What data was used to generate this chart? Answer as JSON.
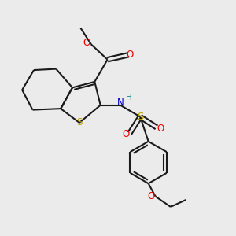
{
  "bg_color": "#ebebeb",
  "bond_color": "#1a1a1a",
  "S_color": "#b8a000",
  "O_color": "#ee0000",
  "N_color": "#0000cc",
  "H_color": "#008888",
  "line_width": 1.5,
  "dbo": 0.12,
  "fig_width": 3.0,
  "fig_height": 3.0,
  "xlim": [
    0,
    10
  ],
  "ylim": [
    0,
    10
  ]
}
